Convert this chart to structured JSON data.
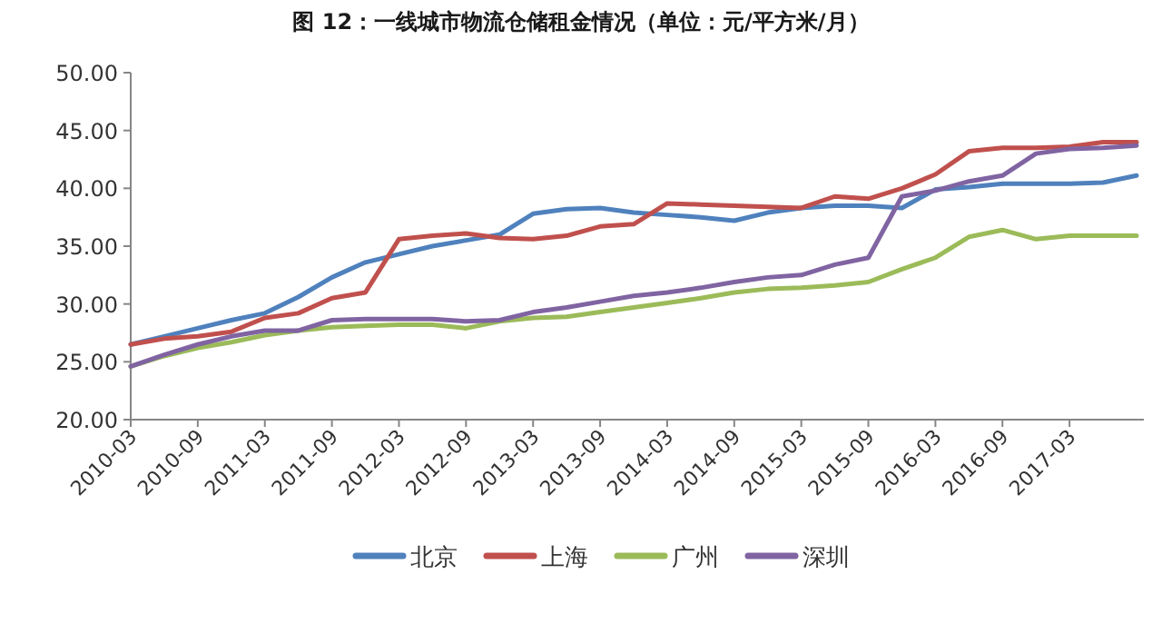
{
  "chart_data": {
    "type": "line",
    "title": "图 12：一线城市物流仓储租金情况（单位：元/平方米/月）",
    "categories": [
      "2010-03",
      null,
      "2010-09",
      null,
      "2011-03",
      null,
      "2011-09",
      null,
      "2012-03",
      null,
      "2012-09",
      null,
      "2013-03",
      null,
      "2013-09",
      null,
      "2014-03",
      null,
      "2014-09",
      null,
      "2015-03",
      null,
      "2015-09",
      null,
      "2016-03",
      null,
      "2016-09",
      null,
      "2017-03",
      null,
      null
    ],
    "ylim": [
      20,
      50
    ],
    "yticks": [
      {
        "value": 20,
        "label": "20.00"
      },
      {
        "value": 25,
        "label": "25.00"
      },
      {
        "value": 30,
        "label": "30.00"
      },
      {
        "value": 35,
        "label": "35.00"
      },
      {
        "value": 40,
        "label": "40.00"
      },
      {
        "value": 45,
        "label": "45.00"
      },
      {
        "value": 50,
        "label": "50.00"
      }
    ],
    "legend": "bottom",
    "series": [
      {
        "name": "北京",
        "color": "#4f81bd",
        "values": [
          26.5,
          27.2,
          27.9,
          28.6,
          29.2,
          30.6,
          32.3,
          33.6,
          34.3,
          35.0,
          35.5,
          36.0,
          37.8,
          38.2,
          38.3,
          37.9,
          37.7,
          37.5,
          37.2,
          37.9,
          38.3,
          38.5,
          38.5,
          38.3,
          39.9,
          40.1,
          40.4,
          40.4,
          40.4,
          40.5,
          41.1
        ]
      },
      {
        "name": "上海",
        "color": "#c0504d",
        "values": [
          26.5,
          27.0,
          27.2,
          27.6,
          28.8,
          29.2,
          30.5,
          31.0,
          35.6,
          35.9,
          36.1,
          35.7,
          35.6,
          35.9,
          36.7,
          36.9,
          38.7,
          38.6,
          38.5,
          38.4,
          38.3,
          39.3,
          39.1,
          40.0,
          41.2,
          43.2,
          43.5,
          43.5,
          43.6,
          44.0,
          44.0
        ]
      },
      {
        "name": "广州",
        "color": "#9bbb59",
        "values": [
          24.6,
          25.5,
          26.2,
          26.7,
          27.3,
          27.7,
          28.0,
          28.1,
          28.2,
          28.2,
          27.9,
          28.5,
          28.8,
          28.9,
          29.3,
          29.7,
          30.1,
          30.5,
          31.0,
          31.3,
          31.4,
          31.6,
          31.9,
          33.0,
          34.0,
          35.8,
          36.4,
          35.6,
          35.9,
          35.9,
          35.9
        ]
      },
      {
        "name": "深圳",
        "color": "#8064a2",
        "values": [
          24.6,
          25.6,
          26.5,
          27.2,
          27.7,
          27.7,
          28.6,
          28.7,
          28.7,
          28.7,
          28.5,
          28.6,
          29.3,
          29.7,
          30.2,
          30.7,
          31.0,
          31.4,
          31.9,
          32.3,
          32.5,
          33.4,
          34.0,
          39.3,
          39.8,
          40.6,
          41.1,
          43.0,
          43.4,
          43.5,
          43.7
        ]
      }
    ]
  }
}
